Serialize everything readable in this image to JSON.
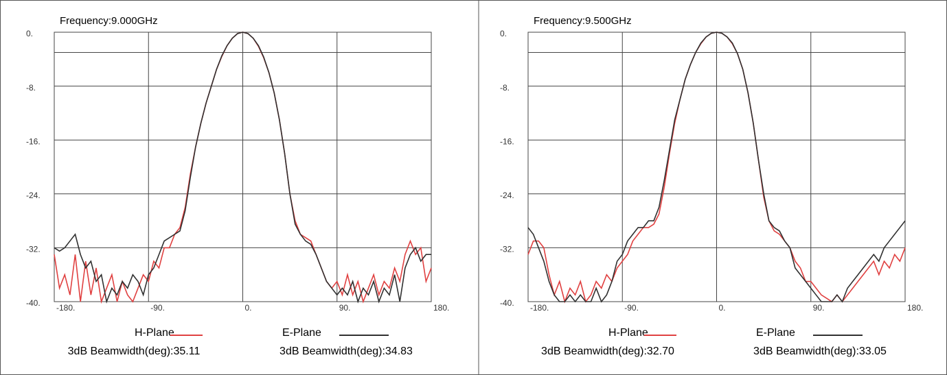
{
  "chart_data": [
    {
      "type": "line",
      "title": "Frequency:9.000GHz",
      "x": [
        -180,
        -175,
        -170,
        -165,
        -160,
        -155,
        -150,
        -145,
        -140,
        -135,
        -130,
        -125,
        -120,
        -115,
        -110,
        -105,
        -100,
        -95,
        -90,
        -85,
        -80,
        -75,
        -70,
        -65,
        -60,
        -55,
        -50,
        -45,
        -40,
        -35,
        -30,
        -25,
        -20,
        -15,
        -10,
        -5,
        0,
        5,
        10,
        15,
        20,
        25,
        30,
        35,
        40,
        45,
        50,
        55,
        60,
        65,
        70,
        75,
        80,
        85,
        90,
        95,
        100,
        105,
        110,
        115,
        120,
        125,
        130,
        135,
        140,
        145,
        150,
        155,
        160,
        165,
        170,
        175,
        180
      ],
      "xlim": [
        -180,
        180
      ],
      "ylim": [
        -40,
        0
      ],
      "xticks": [
        {
          "value": -180,
          "label": "-180."
        },
        {
          "value": -90,
          "label": "-90."
        },
        {
          "value": 0,
          "label": "0."
        },
        {
          "value": 90,
          "label": "90."
        },
        {
          "value": 180,
          "label": "180."
        }
      ],
      "yticks": [
        {
          "value": 0,
          "label": "0."
        },
        {
          "value": -8,
          "label": "-8."
        },
        {
          "value": -16,
          "label": "-16."
        },
        {
          "value": -24,
          "label": "-24."
        },
        {
          "value": -32,
          "label": "-32."
        },
        {
          "value": -40,
          "label": "-40."
        }
      ],
      "reference_line": -3,
      "grid": true,
      "series": [
        {
          "name": "H-Plane",
          "color": "#e04040",
          "annotation": "3dB Beamwidth(deg):35.11",
          "values": [
            -33,
            -38,
            -36,
            -39,
            -33,
            -40,
            -34,
            -39,
            -35,
            -40,
            -38,
            -36,
            -40,
            -37,
            -39,
            -40,
            -38,
            -36,
            -37,
            -34,
            -35,
            -32,
            -32,
            -30,
            -29,
            -26,
            -21,
            -17,
            -13.5,
            -10.5,
            -8,
            -5.5,
            -3.6,
            -2,
            -0.9,
            -0.2,
            0,
            -0.2,
            -0.9,
            -2.1,
            -3.8,
            -6,
            -9,
            -13,
            -18,
            -24,
            -28,
            -30,
            -30.5,
            -31,
            -33,
            -35,
            -37,
            -38,
            -37,
            -39,
            -36,
            -39,
            -37,
            -40,
            -38,
            -36,
            -39,
            -37,
            -38,
            -35,
            -37,
            -33,
            -31,
            -33,
            -32,
            -37,
            -35
          ]
        },
        {
          "name": "E-Plane",
          "color": "#303030",
          "annotation": "3dB Beamwidth(deg):34.83",
          "values": [
            -32,
            -32.5,
            -32,
            -31,
            -30,
            -33,
            -35,
            -34,
            -37,
            -36,
            -40,
            -38,
            -39,
            -37,
            -38,
            -36,
            -37,
            -39,
            -36,
            -35,
            -33,
            -31,
            -30.5,
            -30,
            -29.5,
            -26.5,
            -21.5,
            -17,
            -13.5,
            -10.5,
            -8,
            -5.5,
            -3.5,
            -2,
            -0.9,
            -0.2,
            0,
            -0.2,
            -0.9,
            -2,
            -3.7,
            -6,
            -9,
            -13,
            -18,
            -24,
            -28.5,
            -30,
            -31,
            -31.5,
            -33,
            -35,
            -37,
            -38,
            -39,
            -38,
            -39,
            -37,
            -40,
            -38,
            -39,
            -37,
            -40,
            -38,
            -39,
            -36,
            -40,
            -35,
            -33,
            -32,
            -34,
            -33,
            -33
          ]
        }
      ]
    },
    {
      "type": "line",
      "title": "Frequency:9.500GHz",
      "x": [
        -180,
        -175,
        -170,
        -165,
        -160,
        -155,
        -150,
        -145,
        -140,
        -135,
        -130,
        -125,
        -120,
        -115,
        -110,
        -105,
        -100,
        -95,
        -90,
        -85,
        -80,
        -75,
        -70,
        -65,
        -60,
        -55,
        -50,
        -45,
        -40,
        -35,
        -30,
        -25,
        -20,
        -15,
        -10,
        -5,
        0,
        5,
        10,
        15,
        20,
        25,
        30,
        35,
        40,
        45,
        50,
        55,
        60,
        65,
        70,
        75,
        80,
        85,
        90,
        95,
        100,
        105,
        110,
        115,
        120,
        125,
        130,
        135,
        140,
        145,
        150,
        155,
        160,
        165,
        170,
        175,
        180
      ],
      "xlim": [
        -180,
        180
      ],
      "ylim": [
        -40,
        0
      ],
      "xticks": [
        {
          "value": -180,
          "label": "-180."
        },
        {
          "value": -90,
          "label": "-90."
        },
        {
          "value": 0,
          "label": "0."
        },
        {
          "value": 90,
          "label": "90."
        },
        {
          "value": 180,
          "label": "180."
        }
      ],
      "yticks": [
        {
          "value": 0,
          "label": "0."
        },
        {
          "value": -8,
          "label": "-8."
        },
        {
          "value": -16,
          "label": "-16."
        },
        {
          "value": -24,
          "label": "-24."
        },
        {
          "value": -32,
          "label": "-32."
        },
        {
          "value": -40,
          "label": "-40."
        }
      ],
      "reference_line": -3,
      "grid": true,
      "series": [
        {
          "name": "H-Plane",
          "color": "#e04040",
          "annotation": "3dB Beamwidth(deg):32.70",
          "values": [
            -33,
            -31,
            -31,
            -32,
            -36,
            -39,
            -37,
            -40,
            -38,
            -39,
            -37,
            -40,
            -39,
            -37,
            -38,
            -36,
            -37,
            -35,
            -34,
            -33,
            -31,
            -30,
            -29,
            -29,
            -28.5,
            -27,
            -23,
            -18,
            -13.5,
            -10,
            -7,
            -4.8,
            -3,
            -1.7,
            -0.7,
            -0.15,
            0,
            -0.15,
            -0.7,
            -1.7,
            -3.2,
            -5.5,
            -9,
            -13.5,
            -19,
            -24.5,
            -28,
            -29.5,
            -30,
            -31,
            -32,
            -34,
            -35,
            -37,
            -37,
            -38,
            -39,
            -39.5,
            -40,
            -39,
            -40,
            -39,
            -38,
            -37,
            -36,
            -35,
            -34,
            -36,
            -34,
            -35,
            -33,
            -34,
            -32
          ]
        },
        {
          "name": "E-Plane",
          "color": "#303030",
          "annotation": "3dB Beamwidth(deg):33.05",
          "values": [
            -29,
            -30,
            -32,
            -34,
            -37,
            -39,
            -40,
            -40,
            -39,
            -40,
            -39,
            -40,
            -40,
            -38,
            -40,
            -39,
            -37,
            -34,
            -33,
            -31,
            -30,
            -29,
            -29,
            -28,
            -28,
            -26,
            -22,
            -17.5,
            -13,
            -10,
            -7,
            -4.8,
            -3,
            -1.6,
            -0.7,
            -0.15,
            0,
            -0.15,
            -0.7,
            -1.6,
            -3.2,
            -5.5,
            -9,
            -13.5,
            -19,
            -24,
            -28,
            -29,
            -29.5,
            -31,
            -32,
            -35,
            -36,
            -37,
            -38,
            -39,
            -40,
            -40,
            -40,
            -39,
            -40,
            -38,
            -37,
            -36,
            -35,
            -34,
            -33,
            -34,
            -32,
            -31,
            -30,
            -29,
            -28
          ]
        }
      ]
    }
  ]
}
